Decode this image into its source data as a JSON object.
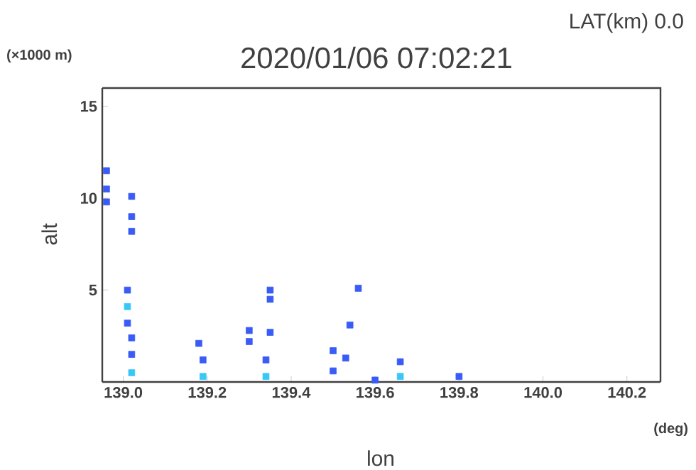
{
  "chart_data": {
    "type": "scatter",
    "title": "2020/01/06 07:02:21",
    "subtitle": "LAT(km) 0.0",
    "xlabel": "lon",
    "ylabel": "alt",
    "annotations": [
      "(×1000 m)",
      "(deg)"
    ],
    "xlim": [
      138.95,
      140.28
    ],
    "xticks": [
      {
        "value": 139,
        "label": "139.0"
      },
      139.2,
      139.4,
      139.6,
      139.8,
      {
        "value": 140,
        "label": "140.0"
      },
      140.2
    ],
    "ylim": [
      0,
      16
    ],
    "yticks": [
      5,
      10,
      15
    ],
    "marker": "square",
    "grid": false,
    "series": [
      {
        "color": "#3a5cf5",
        "x": [
          138.96,
          138.96,
          138.96,
          139.02,
          139.02,
          139.02,
          139.01,
          139.01,
          139.02,
          139.02,
          139.18,
          139.19,
          139.3,
          139.3,
          139.35,
          139.35,
          139.35,
          139.34,
          139.5,
          139.5,
          139.53,
          139.54,
          139.56,
          139.66,
          139.8,
          139.6
        ],
        "values": [
          11.5,
          10.5,
          9.8,
          10.1,
          9.0,
          8.2,
          5.0,
          3.2,
          2.4,
          1.5,
          2.1,
          1.2,
          2.8,
          2.2,
          5.0,
          4.5,
          2.7,
          1.2,
          1.7,
          0.6,
          1.3,
          3.1,
          5.1,
          1.1,
          0.3,
          0.1
        ]
      },
      {
        "color": "#38c8f8",
        "x": [
          139.01,
          139.02,
          139.19,
          139.34,
          139.66
        ],
        "values": [
          4.1,
          0.5,
          0.3,
          0.3,
          0.3
        ]
      }
    ]
  }
}
